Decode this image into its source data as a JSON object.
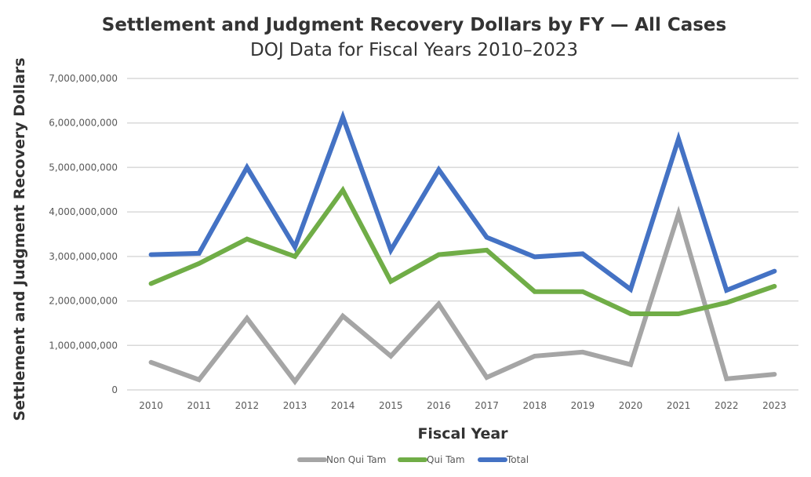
{
  "chart_data": {
    "type": "line",
    "title": "Settlement and Judgment Recovery Dollars by FY — All Cases",
    "subtitle": "DOJ Data for Fiscal Years 2010–2023",
    "xlabel": "Fiscal Year",
    "ylabel": "Settlement and Judgment Recovery Dollars",
    "categories": [
      "2010",
      "2011",
      "2012",
      "2013",
      "2014",
      "2015",
      "2016",
      "2017",
      "2018",
      "2019",
      "2020",
      "2021",
      "2022",
      "2023"
    ],
    "ylim": [
      0,
      7000000000
    ],
    "yticks": [
      0,
      1000000000,
      2000000000,
      3000000000,
      4000000000,
      5000000000,
      6000000000,
      7000000000
    ],
    "ytick_labels": [
      "0",
      "1,000,000,000",
      "2,000,000,000",
      "3,000,000,000",
      "4,000,000,000",
      "5,000,000,000",
      "6,000,000,000",
      "7,000,000,000"
    ],
    "grid": true,
    "legend_position": "bottom",
    "series": [
      {
        "name": "Non Qui Tam",
        "color": "#a5a5a5",
        "values": [
          620000000,
          230000000,
          1610000000,
          190000000,
          1660000000,
          760000000,
          1930000000,
          280000000,
          760000000,
          850000000,
          570000000,
          3960000000,
          250000000,
          350000000
        ]
      },
      {
        "name": "Qui Tam",
        "color": "#70ad47",
        "values": [
          2390000000,
          2840000000,
          3390000000,
          3000000000,
          4490000000,
          2440000000,
          3040000000,
          3140000000,
          2210000000,
          2210000000,
          1710000000,
          1710000000,
          1960000000,
          2330000000
        ]
      },
      {
        "name": "Total",
        "color": "#4472c4",
        "values": [
          3040000000,
          3070000000,
          5000000000,
          3210000000,
          6130000000,
          3140000000,
          4950000000,
          3430000000,
          2990000000,
          3060000000,
          2260000000,
          5640000000,
          2240000000,
          2670000000
        ]
      }
    ]
  }
}
